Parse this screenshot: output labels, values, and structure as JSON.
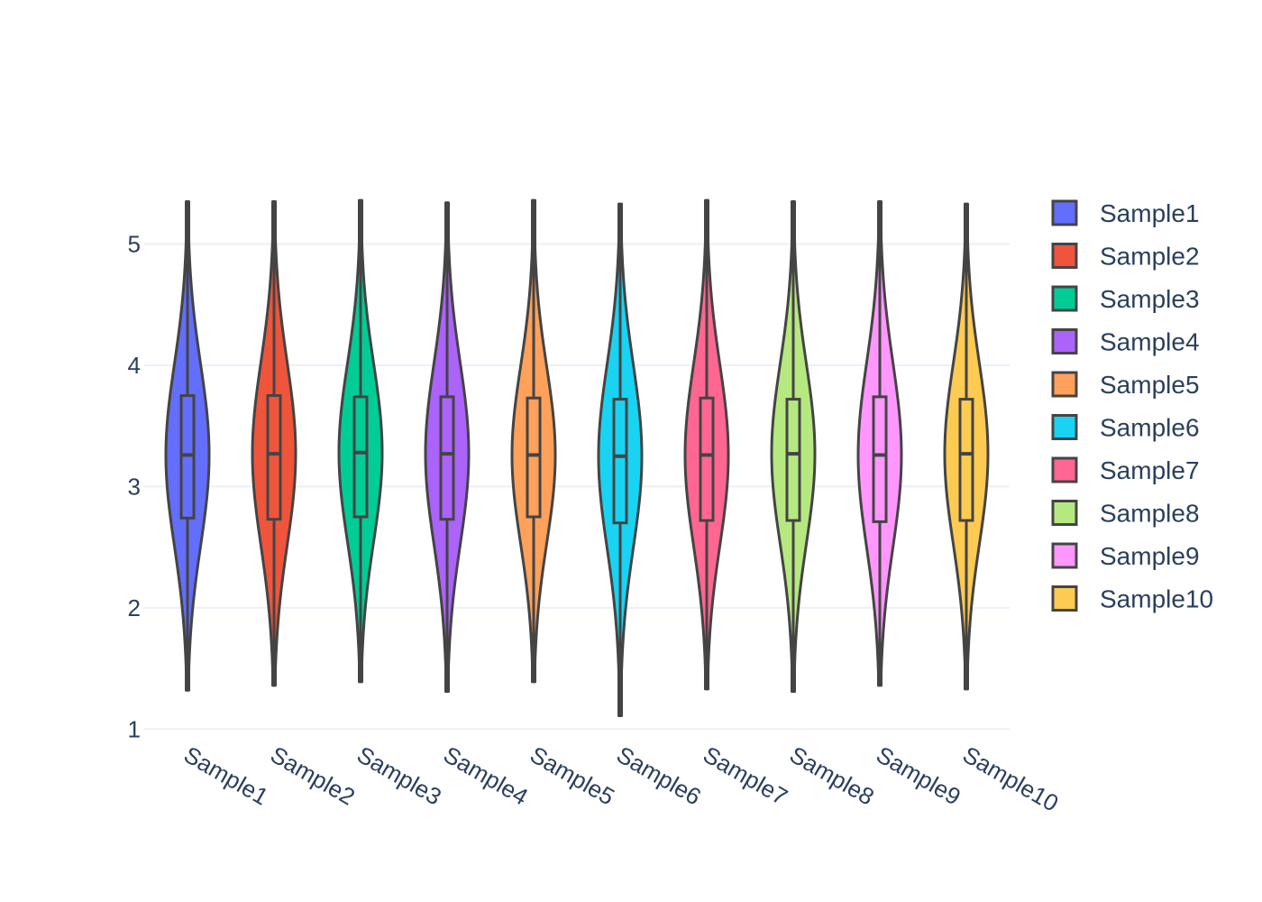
{
  "chart_data": {
    "type": "violin",
    "title": "",
    "xlabel": "",
    "ylabel": "",
    "ylim": [
      0.95,
      5.45
    ],
    "yticks": [
      1,
      2,
      3,
      4,
      5
    ],
    "categories": [
      "Sample1",
      "Sample2",
      "Sample3",
      "Sample4",
      "Sample5",
      "Sample6",
      "Sample7",
      "Sample8",
      "Sample9",
      "Sample10"
    ],
    "series": [
      {
        "name": "Sample1",
        "color": "#636efa",
        "min": 1.32,
        "q1": 2.74,
        "median": 3.26,
        "q3": 3.75,
        "max": 5.35
      },
      {
        "name": "Sample2",
        "color": "#ef553b",
        "min": 1.36,
        "q1": 2.73,
        "median": 3.27,
        "q3": 3.75,
        "max": 5.35
      },
      {
        "name": "Sample3",
        "color": "#00cc96",
        "min": 1.39,
        "q1": 2.75,
        "median": 3.28,
        "q3": 3.74,
        "max": 5.36
      },
      {
        "name": "Sample4",
        "color": "#ab63fa",
        "min": 1.31,
        "q1": 2.73,
        "median": 3.27,
        "q3": 3.74,
        "max": 5.34
      },
      {
        "name": "Sample5",
        "color": "#ffa15a",
        "min": 1.39,
        "q1": 2.75,
        "median": 3.26,
        "q3": 3.73,
        "max": 5.36
      },
      {
        "name": "Sample6",
        "color": "#19d3f3",
        "min": 1.11,
        "q1": 2.7,
        "median": 3.25,
        "q3": 3.72,
        "max": 5.33
      },
      {
        "name": "Sample7",
        "color": "#ff6692",
        "min": 1.33,
        "q1": 2.72,
        "median": 3.26,
        "q3": 3.73,
        "max": 5.36
      },
      {
        "name": "Sample8",
        "color": "#b6e880",
        "min": 1.31,
        "q1": 2.72,
        "median": 3.27,
        "q3": 3.72,
        "max": 5.35
      },
      {
        "name": "Sample9",
        "color": "#ff97ff",
        "min": 1.36,
        "q1": 2.71,
        "median": 3.26,
        "q3": 3.74,
        "max": 5.35
      },
      {
        "name": "Sample10",
        "color": "#fecb52",
        "min": 1.33,
        "q1": 2.72,
        "median": 3.27,
        "q3": 3.72,
        "max": 5.33
      }
    ],
    "grid": true,
    "legend_position": "right"
  }
}
